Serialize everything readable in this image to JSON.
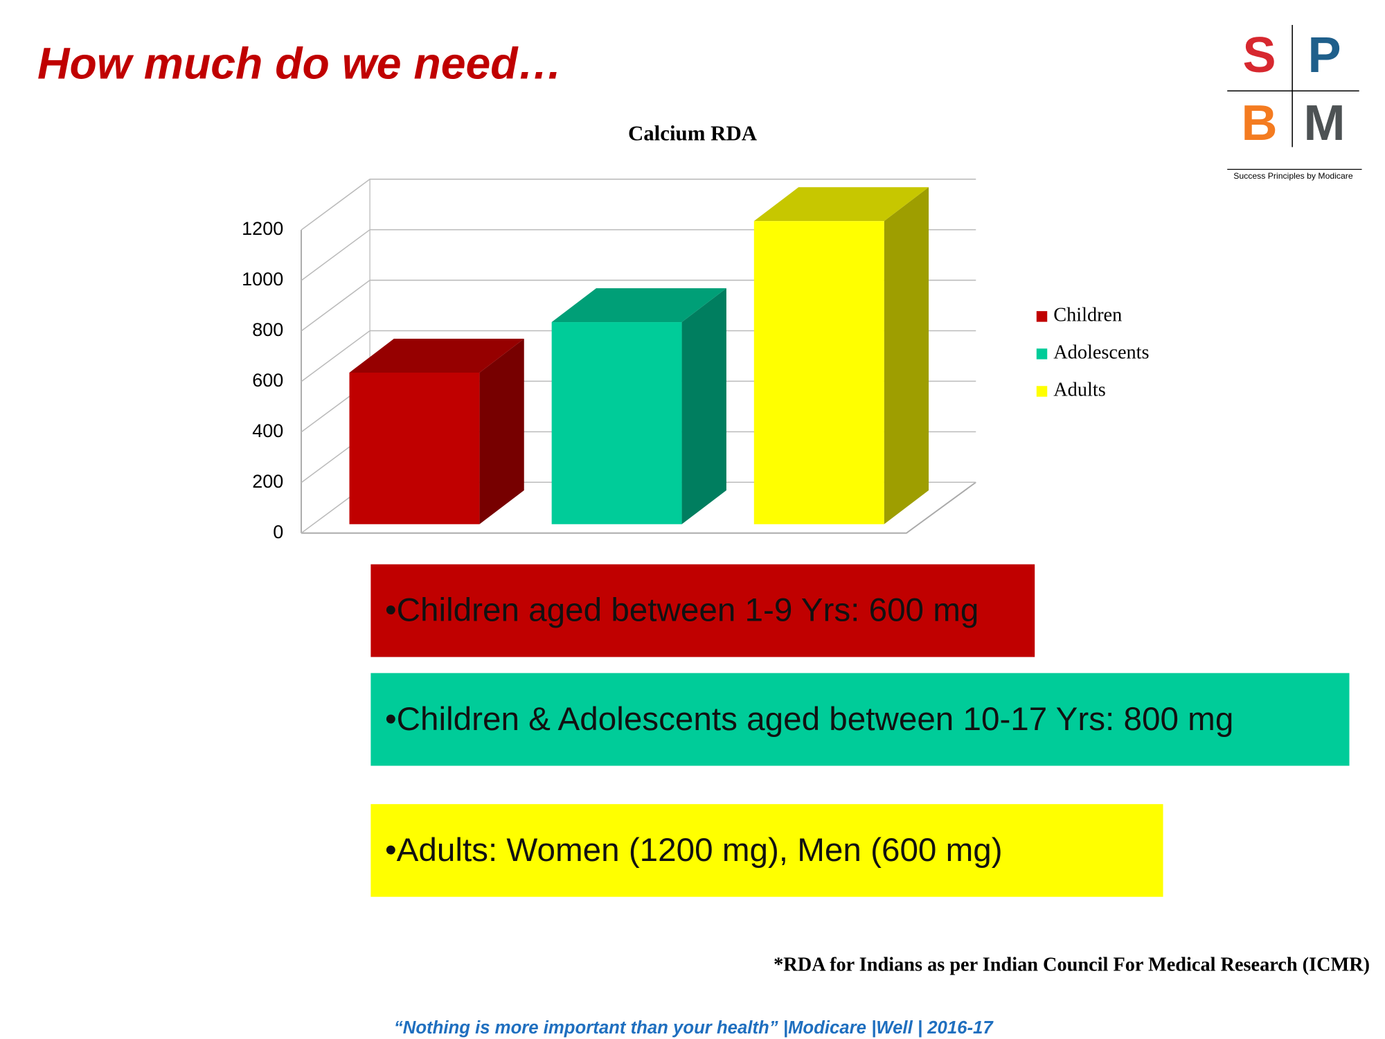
{
  "title": "How much do we need…",
  "logo": {
    "letters": [
      "S",
      "P",
      "B",
      "M"
    ],
    "colors": [
      "#d7282f",
      "#1f5f8b",
      "#f47b20",
      "#4d5254"
    ],
    "tagline": "Success Principles by Modicare"
  },
  "chart_data": {
    "type": "bar3d",
    "title": "Calcium RDA",
    "categories": [
      null
    ],
    "series": [
      {
        "name": "Children",
        "color": "#c00000",
        "values": [
          600
        ]
      },
      {
        "name": "Adolescents",
        "color": "#00cc99",
        "values": [
          800
        ]
      },
      {
        "name": "Adults",
        "color": "#ffff00",
        "values": [
          1200
        ]
      }
    ],
    "ylim": [
      0,
      1200
    ],
    "yticks": [
      0,
      200,
      400,
      600,
      800,
      1000,
      1200
    ],
    "grid": true,
    "legend": "right"
  },
  "notes": [
    {
      "text": "•Children aged between 1-9 Yrs: 600 mg",
      "color": "#c00000"
    },
    {
      "text": "•Children & Adolescents aged between 10-17 Yrs: 800 mg",
      "color": "#00cc99"
    },
    {
      "text": "•Adults: Women (1200 mg), Men (600 mg)",
      "color": "#ffff00"
    }
  ],
  "footnote": "*RDA for Indians as per Indian Council For Medical Research (ICMR)",
  "footer": "“Nothing is more important than your health” |Modicare |Well | 2016-17"
}
